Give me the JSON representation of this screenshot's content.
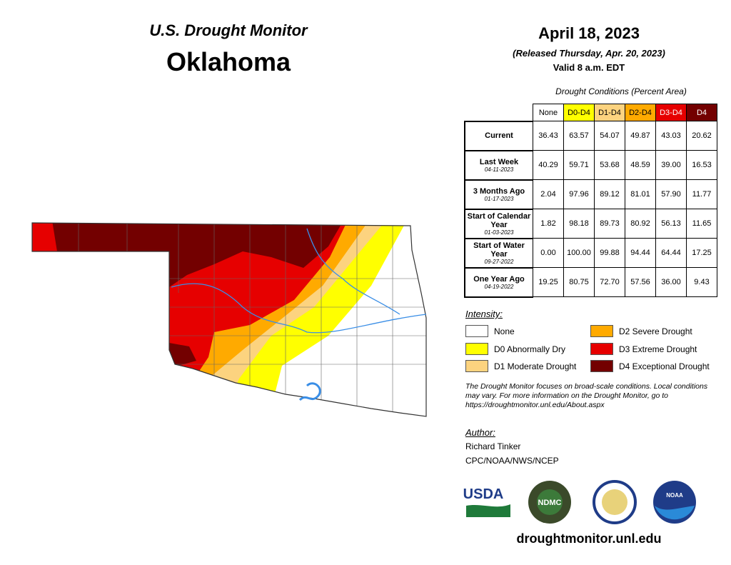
{
  "header": {
    "title": "U.S. Drought Monitor",
    "state": "Oklahoma"
  },
  "date": {
    "main": "April 18, 2023",
    "released": "(Released Thursday, Apr. 20, 2023)",
    "valid": "Valid 8 a.m. EDT"
  },
  "table": {
    "caption": "Drought Conditions (Percent Area)",
    "columns": [
      "None",
      "D0-D4",
      "D1-D4",
      "D2-D4",
      "D3-D4",
      "D4"
    ],
    "rows": [
      {
        "label": "Current",
        "values": [
          "36.43",
          "63.57",
          "54.07",
          "49.87",
          "43.03",
          "20.62"
        ]
      },
      {
        "label": "Last Week",
        "date": "04-11-2023",
        "values": [
          "40.29",
          "59.71",
          "53.68",
          "48.59",
          "39.00",
          "16.53"
        ]
      },
      {
        "label": "3 Months Ago",
        "date": "01-17-2023",
        "values": [
          "2.04",
          "97.96",
          "89.12",
          "81.01",
          "57.90",
          "11.77"
        ]
      },
      {
        "label": "Start of Calendar Year",
        "date": "01-03-2023",
        "values": [
          "1.82",
          "98.18",
          "89.73",
          "80.92",
          "56.13",
          "11.65"
        ]
      },
      {
        "label": "Start of Water Year",
        "date": "09-27-2022",
        "values": [
          "0.00",
          "100.00",
          "99.88",
          "94.44",
          "64.44",
          "17.25"
        ]
      },
      {
        "label": "One Year Ago",
        "date": "04-19-2022",
        "values": [
          "19.25",
          "80.75",
          "72.70",
          "57.56",
          "36.00",
          "9.43"
        ]
      }
    ]
  },
  "legend": {
    "title": "Intensity:",
    "items": [
      {
        "label": "None",
        "color": "#ffffff"
      },
      {
        "label": "D0 Abnormally Dry",
        "color": "#ffff00"
      },
      {
        "label": "D1 Moderate Drought",
        "color": "#fcd37f"
      },
      {
        "label": "D2 Severe Drought",
        "color": "#ffaa00"
      },
      {
        "label": "D3 Extreme Drought",
        "color": "#e60000"
      },
      {
        "label": "D4 Exceptional Drought",
        "color": "#730000"
      }
    ]
  },
  "note": "The Drought Monitor focuses on broad-scale conditions. Local conditions may vary. For more information on the Drought Monitor, go to https://droughtmonitor.unl.edu/About.aspx",
  "author": {
    "title": "Author:",
    "lines": [
      "Richard Tinker",
      "CPC/NOAA/NWS/NCEP"
    ]
  },
  "logos": [
    "USDA",
    "NDMC",
    "NOAA"
  ],
  "url": "droughtmonitor.unl.edu"
}
